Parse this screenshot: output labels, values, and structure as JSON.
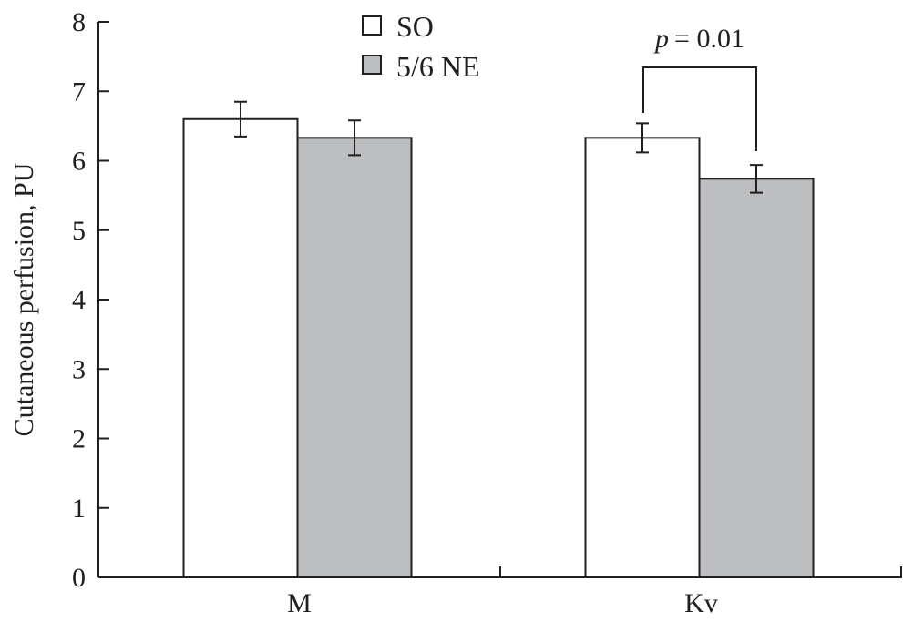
{
  "chart_data": {
    "type": "bar",
    "title": "",
    "xlabel": "",
    "ylabel": "Cutaneous perfusion, PU",
    "ylim": [
      0,
      8
    ],
    "yticks": [
      "0",
      "1",
      "2",
      "3",
      "4",
      "5",
      "6",
      "7",
      "8"
    ],
    "categories": [
      "M",
      "Kv"
    ],
    "series": [
      {
        "name": "SO",
        "values": [
          6.6,
          6.33
        ],
        "errors": [
          0.25,
          0.21
        ],
        "color": "#ffffff"
      },
      {
        "name": "5/6 NE",
        "values": [
          6.33,
          5.74
        ],
        "errors": [
          0.25,
          0.2
        ],
        "color": "#bcbdbf"
      }
    ],
    "annotations": [
      {
        "text": "p = 0.01",
        "p_label": "p",
        "p_value": "= 0.01",
        "category": "Kv"
      }
    ],
    "legend_position": "top-center",
    "grid": false
  }
}
